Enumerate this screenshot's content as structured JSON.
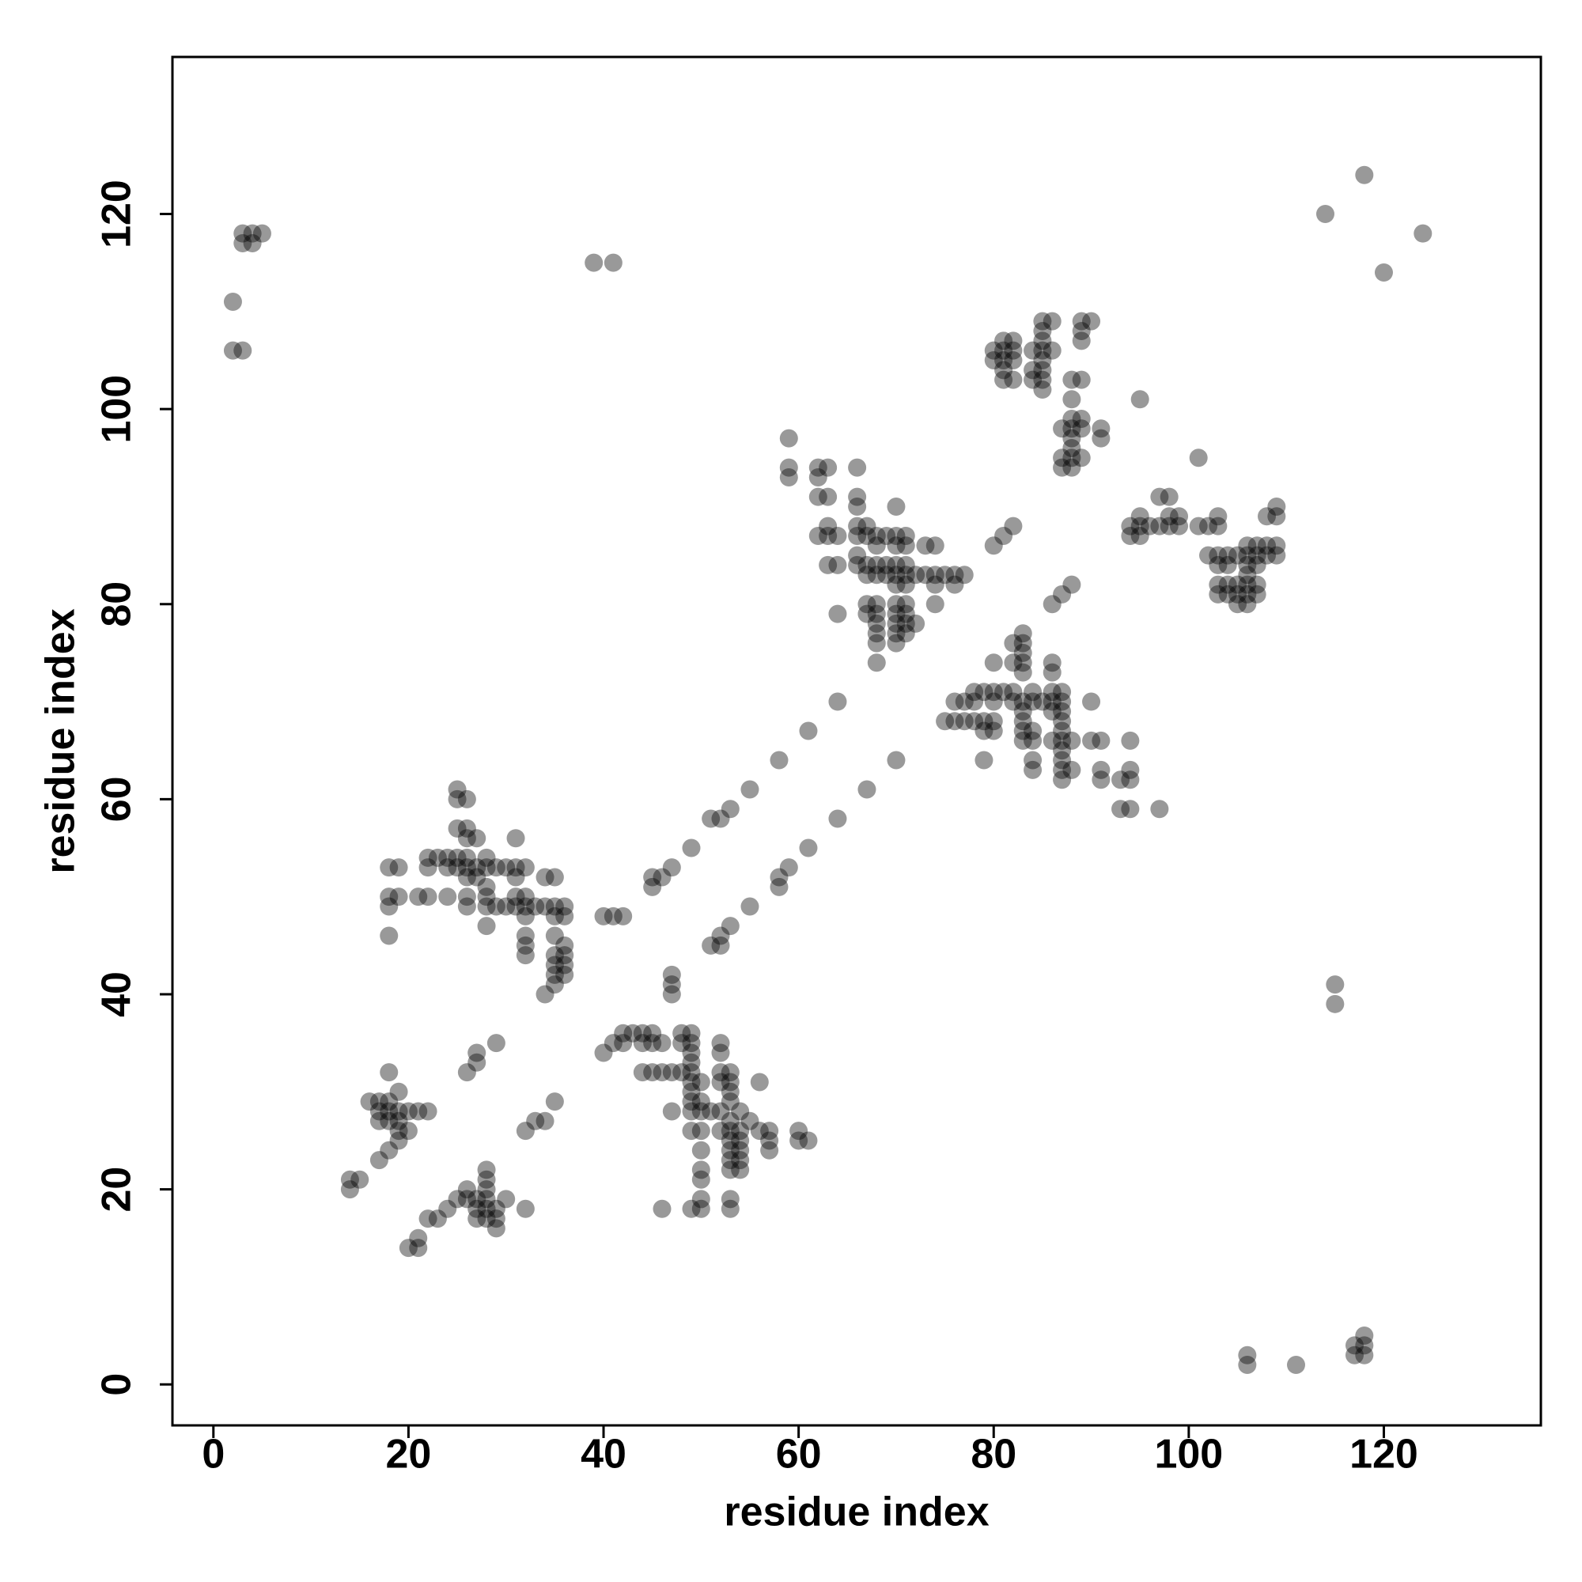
{
  "chart_data": {
    "type": "scatter",
    "xlabel": "residue index",
    "ylabel": "residue index",
    "color": "#000000",
    "alpha": 0.4,
    "xlim": [
      -4.2,
      136.1
    ],
    "ylim": [
      -4.2,
      136.1
    ],
    "xticks": [
      0,
      20,
      40,
      60,
      80,
      100,
      120
    ],
    "yticks": [
      0,
      20,
      40,
      60,
      80,
      100,
      120
    ],
    "x": [
      2,
      2,
      3,
      3,
      4,
      3,
      4,
      5,
      39,
      41,
      114,
      118,
      124,
      120,
      106,
      106,
      111,
      117,
      117,
      118,
      118,
      118,
      115,
      115,
      14,
      15,
      14,
      26,
      27,
      27,
      29,
      20,
      21,
      21,
      32,
      33,
      34,
      35,
      34,
      40,
      41,
      42,
      45,
      45,
      46,
      47,
      49,
      51,
      52,
      53,
      55,
      58,
      61,
      64,
      47,
      47,
      47,
      51,
      52,
      52,
      53,
      55,
      58,
      58,
      59,
      61,
      64,
      67,
      70,
      80,
      81,
      82,
      86,
      87,
      88,
      95,
      101,
      18,
      16,
      17,
      17,
      18,
      18,
      19,
      17,
      18,
      19,
      19,
      19,
      20,
      21,
      22,
      19,
      20,
      18,
      17,
      22,
      23,
      24,
      25,
      26,
      26,
      27,
      27,
      27,
      28,
      28,
      28,
      28,
      28,
      28,
      29,
      29,
      29,
      30,
      32,
      18,
      19,
      18,
      18,
      18,
      19,
      21,
      22,
      24,
      22,
      22,
      23,
      24,
      24,
      25,
      25,
      25,
      26,
      26,
      25,
      26,
      25,
      27,
      26,
      26,
      26,
      26,
      26,
      27,
      27,
      28,
      28,
      28,
      28,
      28,
      28,
      29,
      29,
      30,
      30,
      31,
      31,
      31,
      31,
      31,
      32,
      32,
      32,
      32,
      32,
      32,
      32,
      33,
      34,
      34,
      35,
      35,
      35,
      35,
      35,
      35,
      35,
      35,
      36,
      36,
      36,
      36,
      36,
      36,
      40,
      41,
      42,
      42,
      43,
      44,
      44,
      45,
      45,
      46,
      44,
      45,
      46,
      47,
      48,
      48,
      48,
      49,
      49,
      49,
      49,
      49,
      49,
      49,
      49,
      49,
      50,
      50,
      50,
      50,
      49,
      47,
      46,
      49,
      50,
      50,
      50,
      50,
      50,
      51,
      52,
      52,
      52,
      52,
      52,
      53,
      53,
      53,
      53,
      53,
      53,
      53,
      53,
      53,
      53,
      54,
      54,
      54,
      54,
      54,
      54,
      52,
      53,
      53,
      55,
      56,
      56,
      57,
      57,
      57,
      60,
      60,
      61,
      59,
      59,
      59,
      62,
      63,
      62,
      62,
      63,
      62,
      63,
      63,
      64,
      66,
      66,
      66,
      66,
      66,
      67,
      67,
      68,
      69,
      70,
      70,
      71,
      71,
      70,
      63,
      64,
      66,
      67,
      67,
      68,
      68,
      69,
      69,
      70,
      70,
      70,
      71,
      71,
      71,
      72,
      73,
      74,
      75,
      76,
      77,
      73,
      74,
      76,
      74,
      74,
      72,
      64,
      67,
      67,
      68,
      68,
      68,
      68,
      68,
      68,
      70,
      70,
      70,
      70,
      70,
      71,
      71,
      71,
      71,
      66,
      68,
      76,
      77,
      78,
      78,
      79,
      80,
      80,
      81,
      80,
      76,
      77,
      78,
      79,
      79,
      80,
      80,
      79,
      75,
      82,
      83,
      83,
      83,
      82,
      83,
      83,
      82,
      82,
      83,
      83,
      83,
      83,
      83,
      84,
      84,
      84,
      84,
      84,
      84,
      85,
      86,
      86,
      86,
      86,
      86,
      86,
      87,
      87,
      87,
      87,
      87,
      87,
      87,
      87,
      87,
      87,
      88,
      88,
      90,
      90,
      91,
      91,
      91,
      93,
      94,
      94,
      94,
      93,
      94,
      97,
      80,
      80,
      81,
      81,
      81,
      81,
      81,
      82,
      82,
      82,
      82,
      84,
      84,
      84,
      85,
      85,
      85,
      85,
      85,
      85,
      85,
      85,
      86,
      86,
      89,
      89,
      89,
      90,
      88,
      89,
      88,
      88,
      89,
      88,
      89,
      87,
      88,
      88,
      88,
      87,
      87,
      88,
      89,
      91,
      91,
      94,
      94,
      95,
      95,
      95,
      96,
      97,
      98,
      97,
      98,
      98,
      99,
      99,
      101,
      102,
      103,
      103,
      102,
      103,
      103,
      104,
      104,
      103,
      104,
      105,
      103,
      104,
      105,
      105,
      106,
      106,
      106,
      106,
      106,
      106,
      107,
      107,
      107,
      107,
      107,
      108,
      108,
      108,
      109,
      109,
      109,
      109,
      105,
      106
    ],
    "values": [
      111,
      106,
      106,
      118,
      118,
      117,
      117,
      118,
      115,
      115,
      120,
      124,
      118,
      114,
      3,
      2,
      2,
      4,
      3,
      5,
      4,
      3,
      41,
      39,
      21,
      21,
      20,
      32,
      33,
      34,
      35,
      14,
      14,
      15,
      26,
      27,
      27,
      29,
      40,
      48,
      48,
      48,
      51,
      52,
      52,
      53,
      55,
      58,
      58,
      59,
      61,
      64,
      67,
      70,
      40,
      41,
      42,
      45,
      45,
      46,
      47,
      49,
      51,
      52,
      53,
      55,
      58,
      61,
      64,
      86,
      87,
      88,
      80,
      81,
      82,
      101,
      95,
      32,
      29,
      29,
      28,
      29,
      28,
      28,
      27,
      27,
      27,
      26,
      25,
      28,
      28,
      28,
      30,
      26,
      24,
      23,
      17,
      17,
      18,
      19,
      19,
      20,
      19,
      18,
      17,
      17,
      18,
      19,
      20,
      21,
      22,
      18,
      17,
      16,
      19,
      18,
      53,
      53,
      50,
      49,
      46,
      50,
      50,
      50,
      50,
      54,
      53,
      54,
      54,
      53,
      54,
      53,
      57,
      57,
      56,
      61,
      60,
      60,
      56,
      54,
      53,
      52,
      50,
      49,
      53,
      52,
      54,
      53,
      51,
      50,
      49,
      47,
      53,
      49,
      53,
      49,
      56,
      53,
      52,
      50,
      49,
      53,
      50,
      49,
      48,
      46,
      45,
      44,
      49,
      49,
      52,
      52,
      49,
      48,
      46,
      44,
      43,
      42,
      41,
      49,
      48,
      45,
      44,
      43,
      42,
      34,
      35,
      35,
      36,
      36,
      36,
      35,
      36,
      35,
      35,
      32,
      32,
      32,
      32,
      32,
      36,
      35,
      36,
      35,
      34,
      33,
      32,
      31,
      30,
      29,
      28,
      31,
      29,
      28,
      26,
      26,
      28,
      18,
      18,
      18,
      19,
      21,
      22,
      24,
      28,
      35,
      34,
      32,
      31,
      28,
      32,
      31,
      30,
      29,
      27,
      26,
      25,
      24,
      23,
      22,
      28,
      26,
      25,
      24,
      23,
      22,
      26,
      19,
      18,
      27,
      31,
      26,
      26,
      25,
      24,
      26,
      25,
      25,
      97,
      94,
      93,
      94,
      94,
      93,
      91,
      91,
      87,
      87,
      88,
      87,
      94,
      91,
      90,
      88,
      87,
      88,
      87,
      87,
      87,
      87,
      86,
      87,
      86,
      90,
      84,
      84,
      84,
      84,
      83,
      84,
      83,
      84,
      83,
      84,
      83,
      82,
      84,
      83,
      82,
      83,
      83,
      83,
      83,
      83,
      83,
      86,
      86,
      82,
      82,
      80,
      78,
      79,
      80,
      79,
      80,
      79,
      78,
      77,
      76,
      74,
      80,
      79,
      78,
      77,
      76,
      80,
      79,
      78,
      77,
      85,
      86,
      70,
      70,
      71,
      70,
      71,
      71,
      70,
      71,
      74,
      68,
      68,
      68,
      68,
      67,
      68,
      67,
      64,
      68,
      76,
      77,
      76,
      75,
      74,
      74,
      73,
      71,
      70,
      70,
      69,
      68,
      67,
      66,
      71,
      70,
      67,
      66,
      64,
      63,
      70,
      74,
      73,
      71,
      70,
      69,
      66,
      71,
      70,
      69,
      68,
      67,
      66,
      65,
      64,
      63,
      62,
      66,
      63,
      70,
      66,
      66,
      63,
      62,
      62,
      66,
      63,
      62,
      59,
      59,
      59,
      106,
      105,
      107,
      106,
      105,
      104,
      103,
      107,
      106,
      105,
      103,
      106,
      104,
      103,
      109,
      108,
      107,
      106,
      105,
      104,
      103,
      102,
      109,
      106,
      109,
      108,
      107,
      109,
      103,
      103,
      101,
      99,
      99,
      98,
      98,
      98,
      97,
      96,
      95,
      95,
      94,
      94,
      95,
      98,
      97,
      88,
      87,
      89,
      88,
      87,
      88,
      91,
      91,
      88,
      89,
      88,
      89,
      88,
      88,
      88,
      89,
      88,
      85,
      85,
      84,
      85,
      84,
      82,
      82,
      82,
      81,
      81,
      81,
      80,
      80,
      85,
      84,
      83,
      82,
      81,
      86,
      85,
      84,
      82,
      81,
      89,
      86,
      85,
      90,
      89,
      86,
      85,
      85,
      86
    ]
  }
}
